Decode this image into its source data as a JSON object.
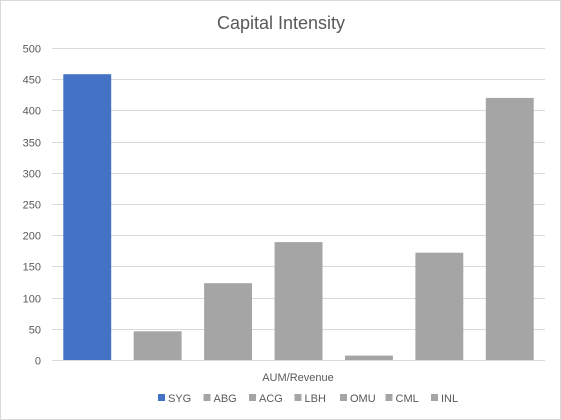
{
  "chart_data": {
    "type": "bar",
    "title": "Capital Intensity",
    "xlabel": "AUM/Revenue",
    "ylabel": "",
    "ylim": [
      0,
      500
    ],
    "yticks": [
      0,
      50,
      100,
      150,
      200,
      250,
      300,
      350,
      400,
      450,
      500
    ],
    "grid": true,
    "legend_position": "bottom",
    "categories": [
      "SYG",
      "ABG",
      "ACG",
      "LBH",
      "OMU",
      "CML",
      "INL"
    ],
    "values": [
      458,
      46,
      123,
      189,
      7,
      172,
      420
    ],
    "colors": [
      "#4472c4",
      "#a5a5a5",
      "#a5a5a5",
      "#a5a5a5",
      "#a5a5a5",
      "#a5a5a5",
      "#a5a5a5"
    ]
  }
}
